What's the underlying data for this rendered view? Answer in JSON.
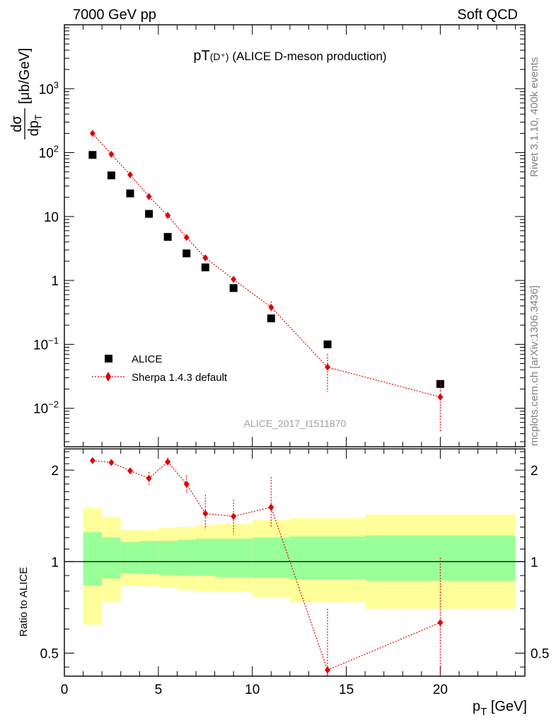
{
  "header": {
    "left": "7000 GeV pp",
    "right": "Soft QCD"
  },
  "side": {
    "rivet": "Rivet 3.1.10,  400k events",
    "mcplots": "mcplots.cern.ch [arXiv:1306.3436]"
  },
  "watermark": "ALICE_2017_I1511870",
  "colors": {
    "data": "#000000",
    "mc": "#e00000",
    "band_inner": "#99ff99",
    "band_outer": "#ffff99"
  },
  "chart_data": [
    {
      "type": "scatter",
      "title": "pT(D⁺) (ALICE D-meson production)",
      "title_main": "pT",
      "title_sub": "(D⁺)",
      "title_rest": " (ALICE D-meson production)",
      "ylabel_num": "dσ",
      "ylabel_den": "dp",
      "ylabel_den_sub": "T",
      "ylabel_unit": "[μb/GeV]",
      "yscale": "log",
      "ylim": [
        0.0025,
        10000
      ],
      "xlim": [
        0,
        24.5
      ],
      "yticks": [
        {
          "v": 0.01,
          "base": "10",
          "exp": "−2"
        },
        {
          "v": 0.1,
          "base": "10",
          "exp": "−1"
        },
        {
          "v": 1,
          "label": "1"
        },
        {
          "v": 10,
          "label": "10"
        },
        {
          "v": 100,
          "base": "10",
          "exp": "2"
        },
        {
          "v": 1000,
          "base": "10",
          "exp": "3"
        }
      ],
      "legend_position": "bottom-left",
      "series": [
        {
          "name": "ALICE",
          "marker": "square",
          "x": [
            1.5,
            2.5,
            3.5,
            4.5,
            5.5,
            6.5,
            7.5,
            9,
            11,
            14,
            20
          ],
          "y": [
            92,
            44,
            23,
            11,
            4.8,
            2.65,
            1.6,
            0.76,
            0.255,
            0.1,
            0.024
          ]
        },
        {
          "name": "Sherpa 1.4.3 default",
          "marker": "diamond",
          "x": [
            1.5,
            2.5,
            3.5,
            4.5,
            5.5,
            6.5,
            7.5,
            9,
            11,
            14,
            20
          ],
          "y": [
            200,
            94,
            45,
            20.5,
            10.4,
            4.7,
            2.25,
            1.04,
            0.38,
            0.044,
            0.015
          ],
          "yerr_low": [
            190,
            90,
            43,
            19.5,
            9.9,
            4.45,
            2.05,
            0.95,
            0.32,
            0.018,
            0.0043
          ],
          "yerr_high": [
            210,
            98,
            47,
            21.5,
            10.9,
            4.95,
            2.5,
            1.14,
            0.47,
            0.07,
            0.026
          ]
        }
      ]
    },
    {
      "type": "scatter",
      "ylabel": "Ratio to ALICE",
      "xlabel_main": "p",
      "xlabel_sub": "T",
      "xlabel_unit": "[GeV]",
      "yscale": "log",
      "ylim": [
        0.42,
        2.35
      ],
      "xlim": [
        0,
        24.5
      ],
      "xticks": [
        0,
        5,
        10,
        15,
        20
      ],
      "yticks": [
        0.5,
        1,
        2
      ],
      "bands": {
        "x_edges": [
          1,
          2,
          3,
          4,
          5,
          6,
          7,
          8,
          10,
          12,
          16,
          24
        ],
        "inner_low": [
          0.835,
          0.88,
          0.915,
          0.91,
          0.905,
          0.9,
          0.9,
          0.89,
          0.885,
          0.875,
          0.865
        ],
        "inner_high": [
          1.25,
          1.2,
          1.16,
          1.17,
          1.17,
          1.18,
          1.19,
          1.19,
          1.2,
          1.21,
          1.22
        ],
        "outer_low": [
          0.62,
          0.74,
          0.835,
          0.83,
          0.82,
          0.805,
          0.8,
          0.795,
          0.765,
          0.735,
          0.7
        ],
        "outer_high": [
          1.5,
          1.4,
          1.27,
          1.27,
          1.29,
          1.3,
          1.32,
          1.33,
          1.37,
          1.39,
          1.43
        ]
      },
      "series": [
        {
          "name": "Sherpa 1.4.3 default",
          "x": [
            1.5,
            2.5,
            3.5,
            4.5,
            5.5,
            6.5,
            7.5,
            9,
            11,
            14,
            20
          ],
          "y": [
            2.15,
            2.12,
            1.99,
            1.88,
            2.13,
            1.8,
            1.44,
            1.41,
            1.51,
            0.44,
            0.63
          ],
          "yerr_low": [
            2.12,
            2.09,
            1.95,
            1.79,
            2.06,
            1.68,
            1.28,
            1.23,
            1.3,
            0.42,
            0.42
          ],
          "yerr_high": [
            2.18,
            2.15,
            2.03,
            1.97,
            2.2,
            1.92,
            1.66,
            1.6,
            1.9,
            0.7,
            1.03
          ]
        }
      ]
    }
  ]
}
